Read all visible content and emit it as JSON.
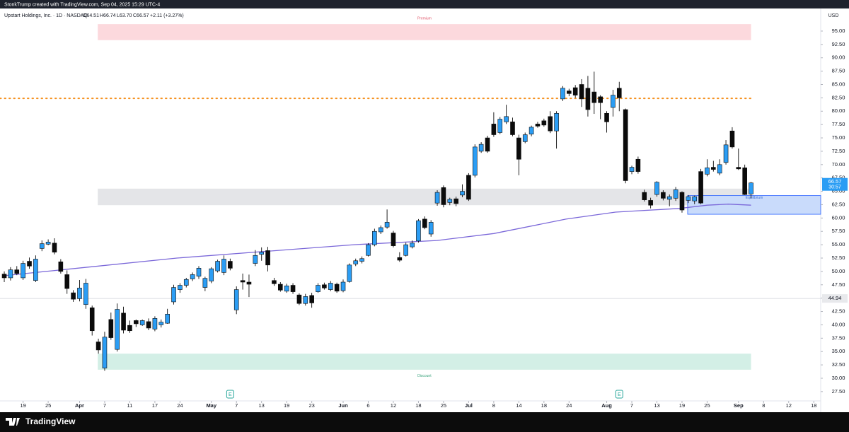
{
  "header": {
    "credit": "StonkTrump created with TradingView.com, Sep 04, 2025 15:29 UTC-4",
    "symbol": "Upstart Holdings, Inc. · 1D · NASDAQ",
    "open": "O64.51",
    "high": "H66.74",
    "low": "L63.70",
    "close": "C66.57",
    "change": "+2.11 (+3.27%)",
    "currency": "USD"
  },
  "footer": {
    "brand": "TradingView"
  },
  "chart_data": {
    "type": "candlestick",
    "up_color": "#2b9df4",
    "down_color": "#0b0b0b",
    "x": [
      0,
      1,
      2,
      3,
      4,
      5,
      6,
      7,
      8,
      9,
      10,
      11,
      12,
      13,
      14,
      15,
      16,
      17,
      18,
      19,
      20,
      21,
      22,
      23,
      24,
      25,
      26,
      27,
      28,
      29,
      30,
      31,
      32,
      33,
      34,
      35,
      36,
      37,
      38,
      39,
      40,
      41,
      42,
      43,
      44,
      45,
      46,
      47,
      48,
      49,
      50,
      51,
      52,
      53,
      54,
      55,
      56,
      57,
      58,
      59,
      60,
      61,
      62,
      63,
      64,
      65,
      66,
      67,
      68,
      69,
      70,
      71,
      72,
      73,
      74,
      75,
      76,
      77,
      78,
      79,
      80,
      81,
      82,
      83,
      84,
      85,
      86,
      87,
      88,
      89,
      90,
      91,
      92,
      93,
      94,
      95,
      96,
      97,
      98,
      99,
      100,
      101,
      102,
      103,
      104,
      105,
      106,
      107,
      108,
      109,
      110,
      111,
      112,
      113,
      114,
      115,
      116,
      117,
      118,
      119
    ],
    "open": [
      49.5,
      48.8,
      50.3,
      48.8,
      51.9,
      48.3,
      54.3,
      55.1,
      55.3,
      51.8,
      49.4,
      46,
      44.9,
      43.8,
      43.2,
      36.8,
      31.9,
      41,
      35.4,
      42.2,
      39.9,
      40.8,
      40,
      40.6,
      39.2,
      40,
      40.3,
      44.3,
      46.6,
      47.4,
      48.6,
      49.1,
      47,
      48.2,
      50.1,
      49.8,
      51.9,
      42.8,
      48.3,
      48,
      51.5,
      53.2,
      53.9,
      48.3,
      47.6,
      46.3,
      47.4,
      45.6,
      44,
      45.5,
      46.2,
      47.5,
      46.6,
      47.6,
      46.4,
      48.1,
      51.4,
      51.9,
      53,
      55,
      57.4,
      58.3,
      57.2,
      52.6,
      53,
      54.6,
      55.7,
      59.8,
      57,
      62.8,
      65.7,
      62.9,
      63.6,
      64.3,
      68,
      68,
      72.5,
      75,
      77.6,
      76,
      78,
      78,
      75,
      74.3,
      75.7,
      77.6,
      78.2,
      79,
      76.3,
      82.3,
      83.8,
      84.4,
      85,
      84.3,
      83.6,
      82.7,
      79.6,
      80.7,
      84.3,
      80.3,
      68.7,
      71,
      64.8,
      63.3,
      64.4,
      64.8,
      63.5,
      63.7,
      64.8,
      63.3,
      63.2,
      68.7,
      68.2,
      69.5,
      68.4,
      70.4,
      76.3,
      69.5,
      69.4,
      64.51
    ],
    "high": [
      50,
      50.8,
      51,
      52,
      52.6,
      53,
      55.8,
      56,
      56.2,
      52.3,
      50.2,
      46.5,
      48.4,
      48.6,
      43.6,
      37.4,
      38.7,
      42.3,
      44,
      43.4,
      40.8,
      41,
      41,
      41.2,
      41.6,
      41,
      43,
      47.5,
      47.8,
      48.8,
      49.8,
      51,
      49,
      50.8,
      52.2,
      53,
      52.4,
      47.2,
      49.6,
      49.4,
      54,
      54.5,
      54.6,
      48.8,
      48,
      47.7,
      47.8,
      45.9,
      45.8,
      46,
      47.8,
      47.9,
      48.2,
      47.9,
      48.5,
      51.5,
      52.4,
      52.8,
      55.3,
      58,
      58.6,
      61.6,
      57.6,
      53.6,
      55.4,
      55.8,
      59.8,
      60.3,
      59.6,
      65.2,
      66.1,
      63.8,
      64,
      66.3,
      68.4,
      73.8,
      74.2,
      75.4,
      79.8,
      78.9,
      81.2,
      78.8,
      75.6,
      76,
      77.3,
      78,
      78.6,
      80,
      80,
      84.7,
      84.2,
      84.9,
      86,
      86.6,
      87.4,
      83,
      80,
      84,
      85.5,
      80.5,
      69.8,
      71.5,
      65.3,
      63.8,
      66.9,
      65.2,
      64.4,
      65.8,
      65,
      64.3,
      64.2,
      69.2,
      71,
      70.7,
      71,
      74.6,
      77,
      73,
      70,
      66.74
    ],
    "low": [
      48,
      48.3,
      49.3,
      48.4,
      50.5,
      48,
      53.8,
      54.9,
      53.2,
      49.6,
      45.8,
      44.3,
      44.4,
      43,
      38,
      34.6,
      31.4,
      37.2,
      35,
      38.4,
      38.5,
      39.6,
      39.8,
      39,
      38.8,
      39.5,
      40.2,
      43.8,
      46,
      47,
      48.2,
      48.6,
      46.3,
      47.8,
      49.8,
      49.3,
      50.2,
      42,
      46.6,
      45.2,
      51,
      52,
      50,
      47.3,
      46.2,
      46,
      45.8,
      43.7,
      43.6,
      43.2,
      46,
      46.6,
      46.3,
      46,
      46.1,
      47.9,
      51,
      51.5,
      52.8,
      54.7,
      57,
      58,
      54.5,
      51.8,
      52.8,
      54.3,
      55.4,
      57.9,
      56.5,
      62.3,
      62,
      62.4,
      62.2,
      63.9,
      63.2,
      67.6,
      72.2,
      72.2,
      75.2,
      75.7,
      77.6,
      75.3,
      68,
      74,
      75.3,
      76.9,
      77.1,
      75.9,
      73,
      81.9,
      82.8,
      82.5,
      80.8,
      79,
      79.5,
      78.5,
      76,
      79,
      80,
      66.5,
      68.2,
      68.3,
      63.1,
      61.8,
      64,
      63.3,
      62.2,
      63.2,
      61,
      62.8,
      62.6,
      62.6,
      67.8,
      68.7,
      68,
      70,
      73,
      69,
      64.3,
      63.7
    ],
    "close": [
      48.8,
      50.3,
      49.6,
      51.5,
      51,
      52.3,
      55.2,
      55.5,
      53.6,
      50,
      46.8,
      44.8,
      46.9,
      47.8,
      38.9,
      35.3,
      37.7,
      37.6,
      42.9,
      39,
      38.9,
      40.2,
      40.8,
      39.4,
      41.2,
      40.5,
      42,
      47,
      47.4,
      48.5,
      49.4,
      50.6,
      48.7,
      50.5,
      51.9,
      52.3,
      50.6,
      46.6,
      48,
      47.6,
      53,
      53.6,
      51.2,
      47.7,
      46.5,
      47.3,
      46.2,
      44,
      45.3,
      44.1,
      47.4,
      46.9,
      47.8,
      46.3,
      48,
      51.2,
      52,
      52.4,
      55,
      57.5,
      58.2,
      59.2,
      54.8,
      52.1,
      55,
      55.3,
      59.5,
      58.2,
      59.2,
      64.8,
      62.5,
      63.5,
      62.7,
      65,
      63.5,
      73.3,
      73.8,
      72.5,
      75.6,
      78.5,
      79,
      75.6,
      71,
      75.6,
      77,
      77.2,
      77.4,
      76.3,
      79.6,
      84.3,
      83.3,
      83,
      82.3,
      80.3,
      81.6,
      81.6,
      78,
      83,
      82.5,
      67,
      69.5,
      68.7,
      63.4,
      62.4,
      66.7,
      63.7,
      64,
      65.3,
      61.5,
      64,
      64,
      62.8,
      69.4,
      69.1,
      70,
      73.7,
      73.3,
      69.2,
      64.4,
      66.57
    ],
    "xlim": [
      -0.68,
      130.1
    ],
    "ylim": [
      25.76,
      99.23
    ],
    "xticks": [
      {
        "value": 3,
        "label": "19"
      },
      {
        "value": 7,
        "label": "25"
      },
      {
        "value": 12,
        "label": "Apr"
      },
      {
        "value": 16,
        "label": "7"
      },
      {
        "value": 20,
        "label": "11"
      },
      {
        "value": 24,
        "label": "17"
      },
      {
        "value": 28,
        "label": "24"
      },
      {
        "value": 33,
        "label": "May"
      },
      {
        "value": 37,
        "label": "7"
      },
      {
        "value": 41,
        "label": "13"
      },
      {
        "value": 45,
        "label": "19"
      },
      {
        "value": 49,
        "label": "23"
      },
      {
        "value": 54,
        "label": "Jun"
      },
      {
        "value": 58,
        "label": "6"
      },
      {
        "value": 62,
        "label": "12"
      },
      {
        "value": 66,
        "label": "18"
      },
      {
        "value": 70,
        "label": "25"
      },
      {
        "value": 74,
        "label": "Jul"
      },
      {
        "value": 78,
        "label": "8"
      },
      {
        "value": 82,
        "label": "14"
      },
      {
        "value": 86,
        "label": "18"
      },
      {
        "value": 90,
        "label": "24"
      },
      {
        "value": 96,
        "label": "Aug"
      },
      {
        "value": 100,
        "label": "7"
      },
      {
        "value": 104,
        "label": "13"
      },
      {
        "value": 108,
        "label": "19"
      },
      {
        "value": 112,
        "label": "25"
      },
      {
        "value": 117,
        "label": "Sep"
      },
      {
        "value": 121,
        "label": "8"
      },
      {
        "value": 125,
        "label": "12"
      },
      {
        "value": 129,
        "label": "18"
      }
    ],
    "yticks": [
      {
        "value": 27.5,
        "label": "27.50"
      },
      {
        "value": 30,
        "label": "30.00"
      },
      {
        "value": 32.5,
        "label": "32.50"
      },
      {
        "value": 35,
        "label": "35.00"
      },
      {
        "value": 37.5,
        "label": "37.50"
      },
      {
        "value": 40,
        "label": "40.00"
      },
      {
        "value": 42.5,
        "label": "42.50"
      },
      {
        "value": 45,
        "label": "45.00"
      },
      {
        "value": 47.5,
        "label": "47.50"
      },
      {
        "value": 50,
        "label": "50.00"
      },
      {
        "value": 52.5,
        "label": "52.50"
      },
      {
        "value": 55,
        "label": "55.00"
      },
      {
        "value": 57.5,
        "label": "57.50"
      },
      {
        "value": 60,
        "label": "60.00"
      },
      {
        "value": 62.5,
        "label": "62.50"
      },
      {
        "value": 65,
        "label": "65.00"
      },
      {
        "value": 67.5,
        "label": "67.50"
      },
      {
        "value": 70,
        "label": "70.00"
      },
      {
        "value": 72.5,
        "label": "72.50"
      },
      {
        "value": 75,
        "label": "75.00"
      },
      {
        "value": 77.5,
        "label": "77.50"
      },
      {
        "value": 80,
        "label": "80.00"
      },
      {
        "value": 82.5,
        "label": "82.50"
      },
      {
        "value": 85,
        "label": "85.00"
      },
      {
        "value": 87.5,
        "label": "87.50"
      },
      {
        "value": 90,
        "label": "90.00"
      },
      {
        "value": 92.5,
        "label": "92.50"
      },
      {
        "value": 95,
        "label": "95.00"
      }
    ],
    "zones": [
      {
        "label": "Premium",
        "x": [
          14.9,
          119
        ],
        "y": [
          93.3,
          96.3
        ],
        "color": "#fcd9dd"
      },
      {
        "label": "Discount",
        "x": [
          14.9,
          119
        ],
        "y": [
          31.6,
          34.6
        ],
        "color": "#d3efe6"
      },
      {
        "x": [
          14.9,
          119
        ],
        "y": [
          62.4,
          65.5
        ],
        "color": "#e4e5e8"
      },
      {
        "label": "Equilibrium",
        "x": [
          108.9,
          130.1
        ],
        "y": [
          60.7,
          64.2
        ],
        "color": "#c9dbfb"
      }
    ],
    "ma": {
      "color": "#7b68d9",
      "x": [
        0,
        27.5,
        55.7,
        69,
        78,
        89.5,
        97.4,
        107.6,
        112,
        115.4,
        119
      ],
      "values": [
        49.2,
        52.5,
        55,
        55.8,
        57.1,
        59.8,
        61.1,
        61.8,
        62.4,
        62.6,
        62.4
      ]
    },
    "level": {
      "value": 82.4,
      "color": "#f5911f"
    },
    "price_line": {
      "value": 44.94,
      "label": "44.94"
    },
    "last_price": {
      "value": 66.57,
      "label": "66.57",
      "countdown": "30:57"
    },
    "earnings": [
      {
        "x": 36,
        "label": "E"
      },
      {
        "x": 98,
        "label": "E"
      }
    ]
  }
}
